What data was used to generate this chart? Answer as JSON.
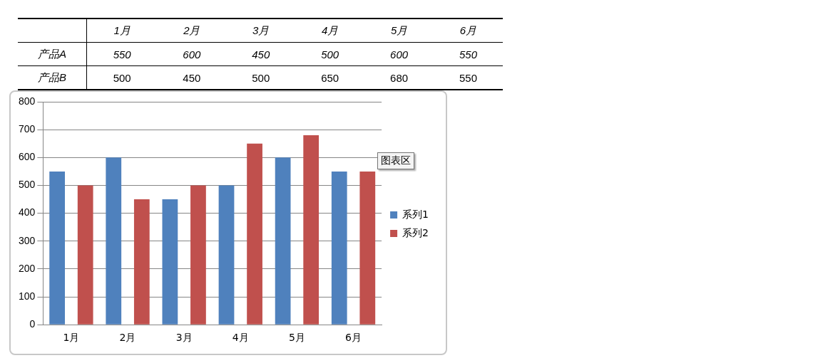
{
  "chart_data": [
    {
      "type": "heatmap",
      "categories": [
        "1月",
        "2月",
        "3月",
        "4月",
        "5月",
        "6月"
      ],
      "y_categories": [
        "产品A",
        "产品B"
      ],
      "cells": [
        [
          550,
          600,
          450,
          500,
          600,
          550
        ],
        [
          500,
          450,
          500,
          650,
          680,
          550
        ]
      ],
      "data_labels": true
    },
    {
      "type": "bar",
      "categories": [
        "1月",
        "2月",
        "3月",
        "4月",
        "5月",
        "6月"
      ],
      "series": [
        {
          "name": "系列1",
          "color": "#4f81bd",
          "values": [
            550,
            600,
            450,
            500,
            600,
            550
          ]
        },
        {
          "name": "系列2",
          "color": "#c0504d",
          "values": [
            500,
            450,
            500,
            650,
            680,
            550
          ]
        }
      ],
      "ylim": [
        0,
        800
      ],
      "yticks": [
        0,
        100,
        200,
        300,
        400,
        500,
        600,
        700,
        800
      ],
      "grid": "y",
      "legend": "right",
      "annotations": [
        "图表区"
      ]
    }
  ]
}
